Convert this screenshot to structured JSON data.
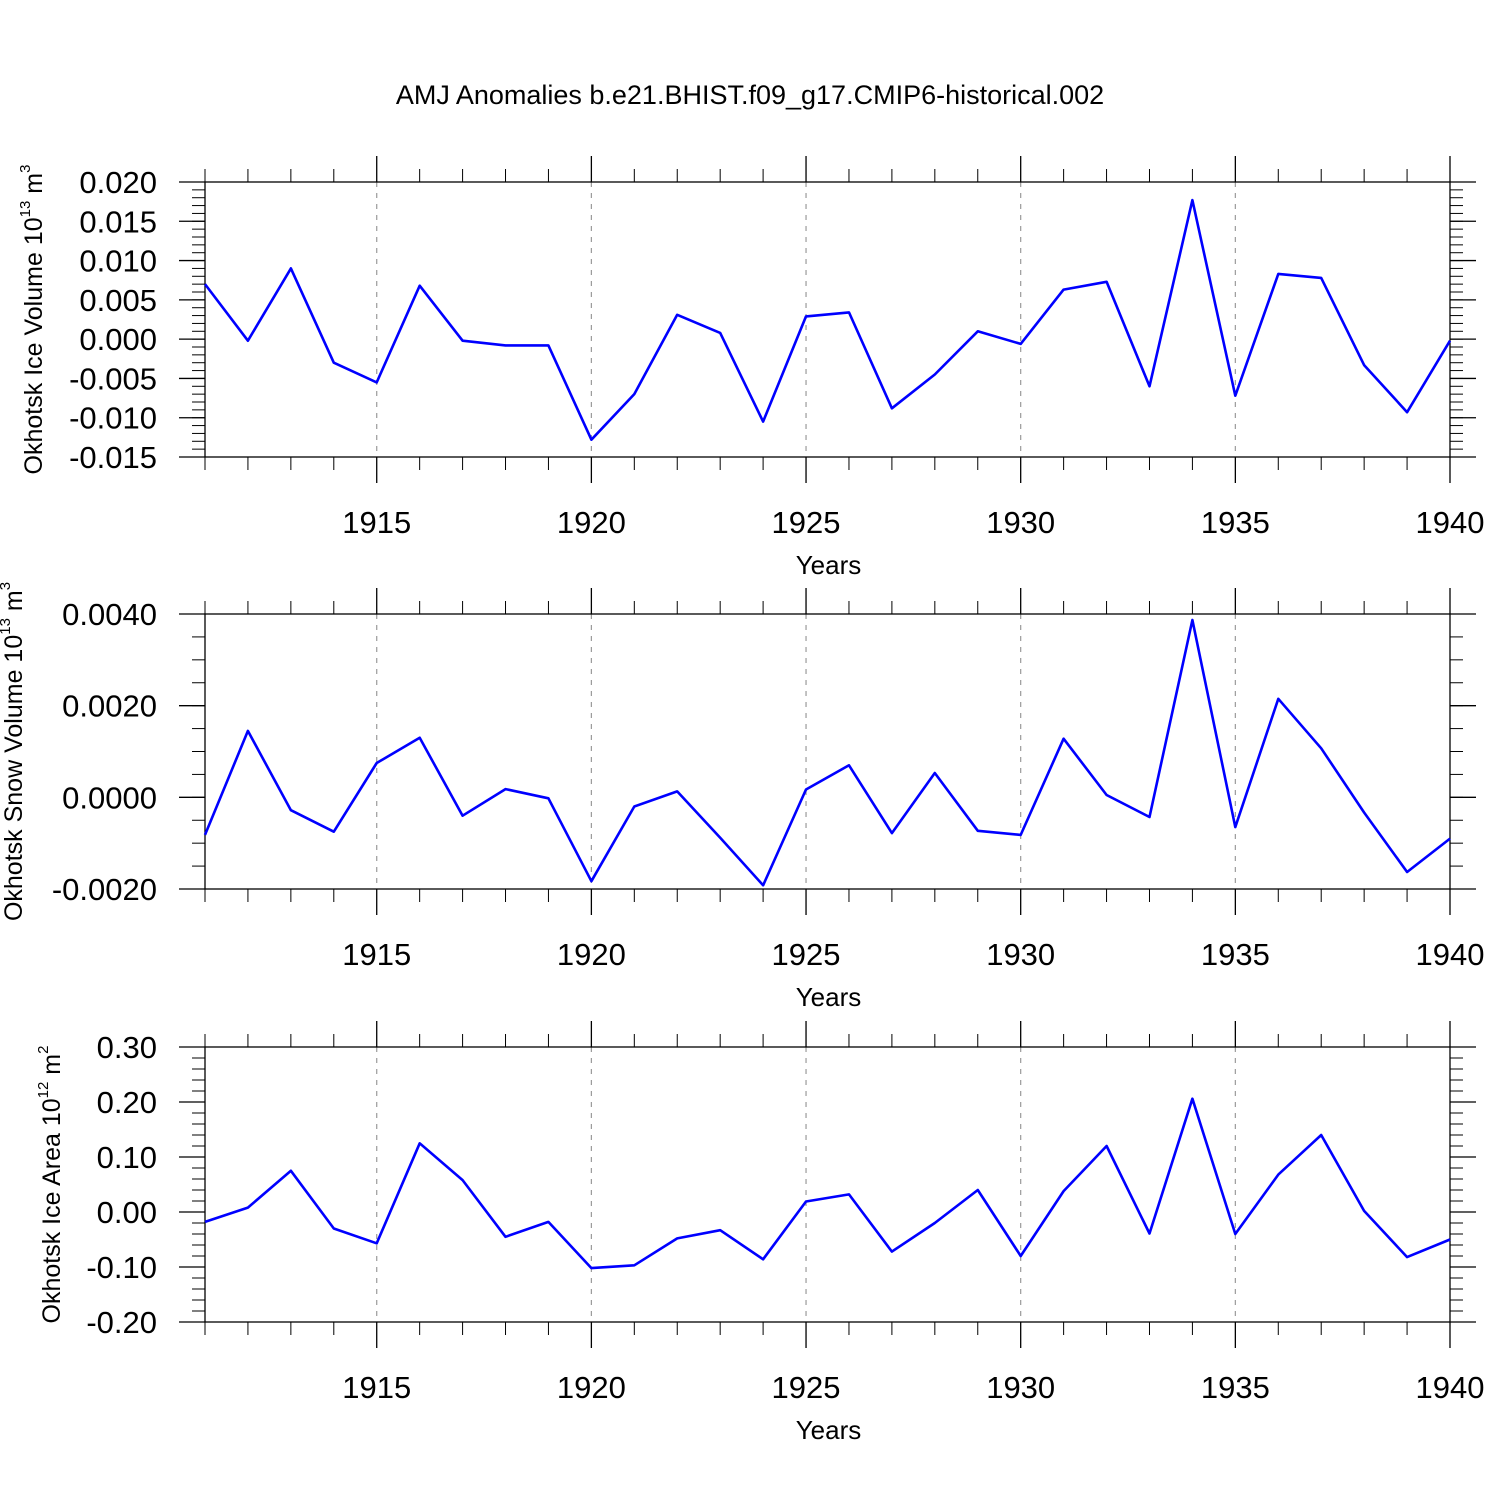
{
  "title": "AMJ Anomalies b.e21.BHIST.f09_g17.CMIP6-historical.002",
  "colors": {
    "line": "#0000ff",
    "grid": "#9a9a9a",
    "axis": "#000000"
  },
  "chart_data": [
    {
      "type": "line",
      "name": "ice-volume",
      "ylabel_main": "Okhotsk Ice Volume 10",
      "ylabel_exp": "13",
      "ylabel_unit": " m",
      "ylabel_unit_exp": "3",
      "xlabel": "Years",
      "xlim": [
        1911,
        1940
      ],
      "ylim": [
        -0.015,
        0.02
      ],
      "yticks": [
        -0.015,
        -0.01,
        -0.005,
        0.0,
        0.005,
        0.01,
        0.015,
        0.02
      ],
      "ytick_labels": [
        "-0.015",
        "-0.010",
        "-0.005",
        "0.000",
        "0.005",
        "0.010",
        "0.015",
        "0.020"
      ],
      "yminor_step": 0.001,
      "xticks": [
        1915,
        1920,
        1925,
        1930,
        1935,
        1940
      ],
      "xtick_labels": [
        "1915",
        "1920",
        "1925",
        "1930",
        "1935",
        "1940"
      ],
      "x": [
        1911,
        1912,
        1913,
        1914,
        1915,
        1916,
        1917,
        1918,
        1919,
        1920,
        1921,
        1922,
        1923,
        1924,
        1925,
        1926,
        1927,
        1928,
        1929,
        1930,
        1931,
        1932,
        1933,
        1934,
        1935,
        1936,
        1937,
        1938,
        1939,
        1940
      ],
      "y": [
        0.007,
        -0.0002,
        0.009,
        -0.003,
        -0.0055,
        0.0068,
        -0.0002,
        -0.0008,
        -0.0008,
        -0.0128,
        -0.007,
        0.0031,
        0.0008,
        -0.0105,
        0.0029,
        0.0034,
        -0.0088,
        -0.0045,
        0.001,
        -0.0006,
        0.0063,
        0.0073,
        -0.006,
        0.0177,
        -0.0072,
        0.0083,
        0.0078,
        -0.0033,
        -0.0093,
        -0.0002
      ]
    },
    {
      "type": "line",
      "name": "snow-volume",
      "ylabel_main": "Okhotsk Snow Volume 10",
      "ylabel_exp": "13",
      "ylabel_unit": " m",
      "ylabel_unit_exp": "3",
      "xlabel": "Years",
      "xlim": [
        1911,
        1940
      ],
      "ylim": [
        -0.002,
        0.004
      ],
      "yticks": [
        -0.002,
        0.0,
        0.002,
        0.004
      ],
      "ytick_labels": [
        "-0.0020",
        "0.0000",
        "0.0020",
        "0.0040"
      ],
      "yminor_step": 0.0005,
      "xticks": [
        1915,
        1920,
        1925,
        1930,
        1935,
        1940
      ],
      "xtick_labels": [
        "1915",
        "1920",
        "1925",
        "1930",
        "1935",
        "1940"
      ],
      "x": [
        1911,
        1912,
        1913,
        1914,
        1915,
        1916,
        1917,
        1918,
        1919,
        1920,
        1921,
        1922,
        1923,
        1924,
        1925,
        1926,
        1927,
        1928,
        1929,
        1930,
        1931,
        1932,
        1933,
        1934,
        1935,
        1936,
        1937,
        1938,
        1939,
        1940
      ],
      "y": [
        -0.00082,
        0.00145,
        -0.00028,
        -0.00075,
        0.00075,
        0.0013,
        -0.0004,
        0.00018,
        -2e-05,
        -0.00183,
        -0.0002,
        0.00013,
        -0.00088,
        -0.00192,
        0.00017,
        0.0007,
        -0.00078,
        0.00053,
        -0.00073,
        -0.00082,
        0.00128,
        5e-05,
        -0.00043,
        0.00387,
        -0.00065,
        0.00215,
        0.00107,
        -0.00033,
        -0.00163,
        -0.0009
      ]
    },
    {
      "type": "line",
      "name": "ice-area",
      "ylabel_main": "Okhotsk Ice Area 10",
      "ylabel_exp": "12",
      "ylabel_unit": " m",
      "ylabel_unit_exp": "2",
      "xlabel": "Years",
      "xlim": [
        1911,
        1940
      ],
      "ylim": [
        -0.2,
        0.3
      ],
      "yticks": [
        -0.2,
        -0.1,
        0.0,
        0.1,
        0.2,
        0.3
      ],
      "ytick_labels": [
        "-0.20",
        "-0.10",
        "0.00",
        "0.10",
        "0.20",
        "0.30"
      ],
      "yminor_step": 0.02,
      "xticks": [
        1915,
        1920,
        1925,
        1930,
        1935,
        1940
      ],
      "xtick_labels": [
        "1915",
        "1920",
        "1925",
        "1930",
        "1935",
        "1940"
      ],
      "x": [
        1911,
        1912,
        1913,
        1914,
        1915,
        1916,
        1917,
        1918,
        1919,
        1920,
        1921,
        1922,
        1923,
        1924,
        1925,
        1926,
        1927,
        1928,
        1929,
        1930,
        1931,
        1932,
        1933,
        1934,
        1935,
        1936,
        1937,
        1938,
        1939,
        1940
      ],
      "y": [
        -0.018,
        0.008,
        0.075,
        -0.03,
        -0.057,
        0.125,
        0.058,
        -0.045,
        -0.018,
        -0.102,
        -0.097,
        -0.048,
        -0.033,
        -0.086,
        0.019,
        0.032,
        -0.072,
        -0.02,
        0.04,
        -0.08,
        0.038,
        0.12,
        -0.039,
        0.206,
        -0.04,
        0.068,
        0.14,
        0.002,
        -0.082,
        -0.05
      ]
    }
  ]
}
